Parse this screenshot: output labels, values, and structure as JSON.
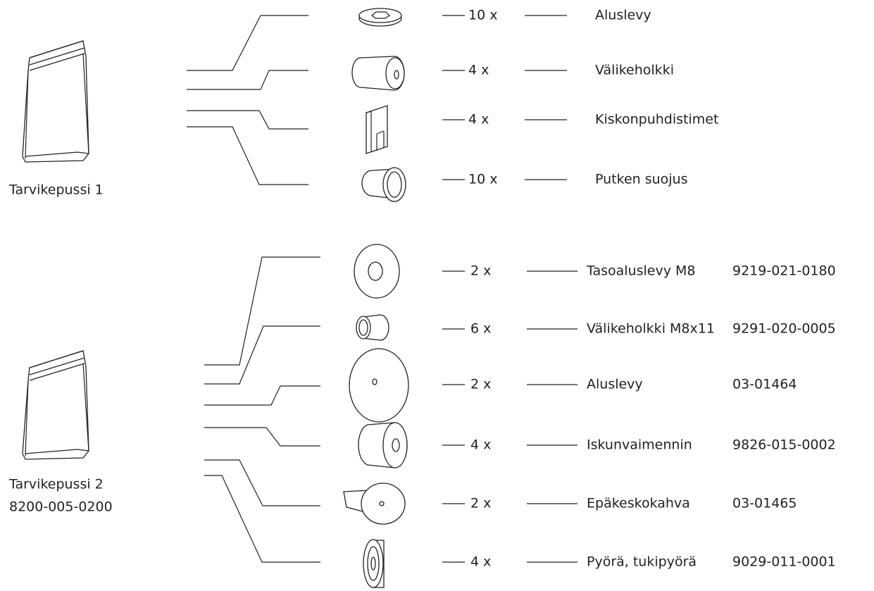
{
  "bags": [
    {
      "label": "Tarvikepussi 1",
      "items": [
        {
          "qty": "10 x",
          "name": "Aluslevy"
        },
        {
          "qty": "4 x",
          "name": "Välikeholkki"
        },
        {
          "qty": "4 x",
          "name": "Kiskonpuhdistimet"
        },
        {
          "qty": "10 x",
          "name": "Putken suojus"
        }
      ]
    },
    {
      "label": "Tarvikepussi 2",
      "code": "8200-005-0200",
      "items": [
        {
          "qty": "2 x",
          "name": "Tasoaluslevy M8",
          "code": "9219-021-0180"
        },
        {
          "qty": "6 x",
          "name": "Välikeholkki M8x11",
          "code": "9291-020-0005"
        },
        {
          "qty": "2 x",
          "name": "Aluslevy",
          "code": "03-01464"
        },
        {
          "qty": "4 x",
          "name": "Iskunvaimennin",
          "code": "9826-015-0002"
        },
        {
          "qty": "2 x",
          "name": "Epäkeskokahva",
          "code": "03-01465"
        },
        {
          "qty": "4 x",
          "name": "Pyörä, tukipyörä",
          "code": "9029-011-0001"
        }
      ]
    }
  ]
}
